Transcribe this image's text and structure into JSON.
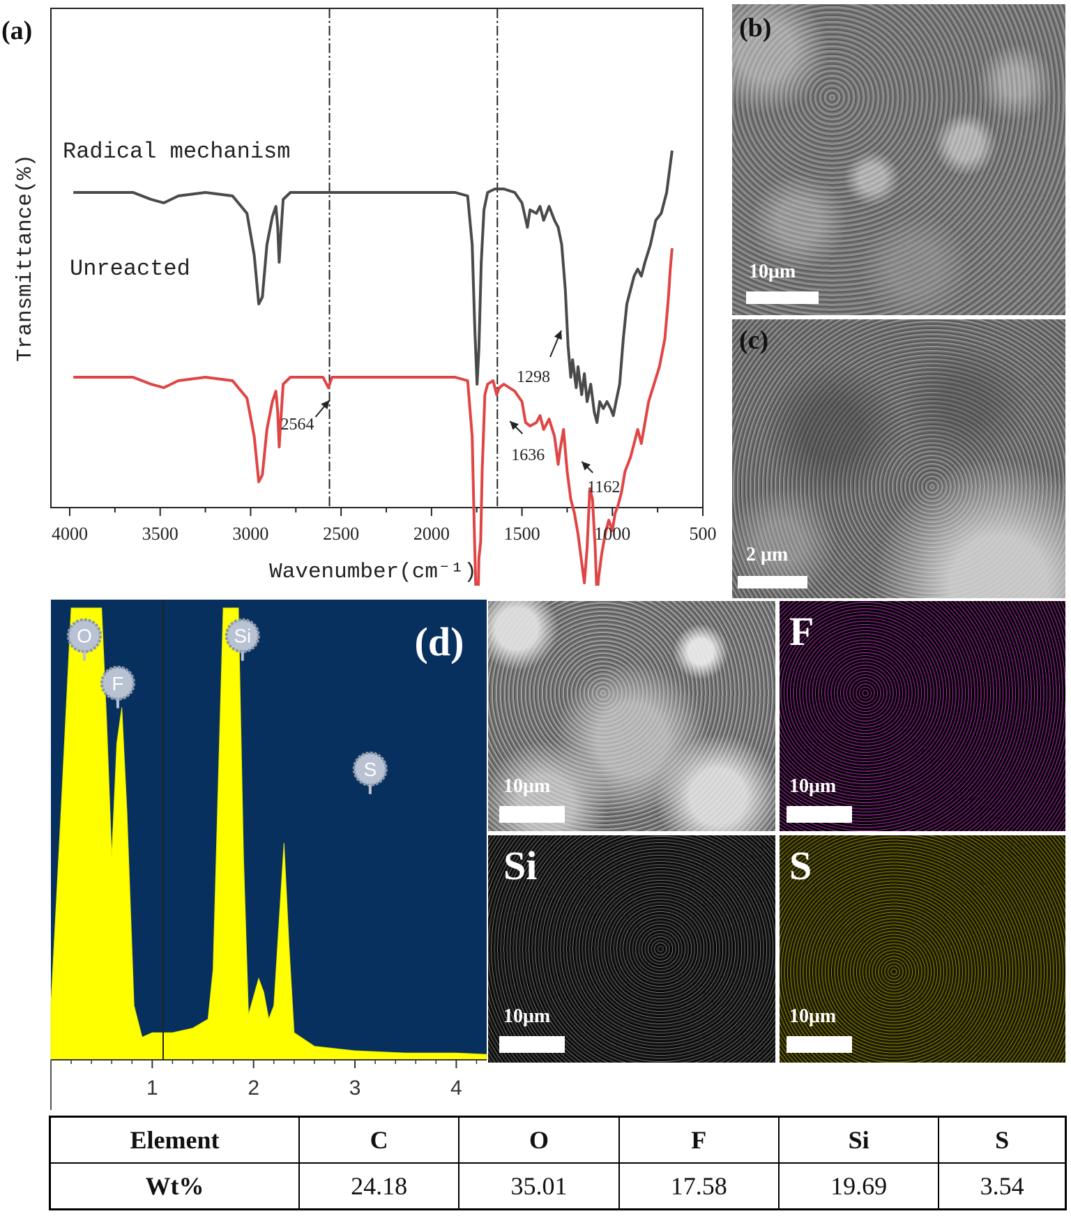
{
  "panels": {
    "a": "(a)",
    "b": "(b)",
    "c": "(c)",
    "d": "(d)"
  },
  "chart_data": [
    {
      "type": "line",
      "panel": "(a)",
      "ylabel": "Transmittance(%)",
      "xlabel": "Wavenumber(cm⁻¹)",
      "xlim": [
        4000,
        500
      ],
      "x_ticks": [
        4000,
        3500,
        3000,
        2500,
        2000,
        1500,
        1000,
        500
      ],
      "grid": false,
      "series": [
        {
          "name": "Radical mechanism",
          "color": "#4a4a4a",
          "points": [
            [
              3980,
              0.4
            ],
            [
              3650,
              0.4
            ],
            [
              3550,
              0.42
            ],
            [
              3480,
              0.43
            ],
            [
              3400,
              0.41
            ],
            [
              3250,
              0.4
            ],
            [
              3100,
              0.41
            ],
            [
              3020,
              0.46
            ],
            [
              2980,
              0.58
            ],
            [
              2955,
              0.72
            ],
            [
              2935,
              0.7
            ],
            [
              2910,
              0.55
            ],
            [
              2880,
              0.47
            ],
            [
              2860,
              0.44
            ],
            [
              2850,
              0.5
            ],
            [
              2842,
              0.6
            ],
            [
              2834,
              0.53
            ],
            [
              2820,
              0.42
            ],
            [
              2780,
              0.4
            ],
            [
              2600,
              0.4
            ],
            [
              2000,
              0.4
            ],
            [
              1870,
              0.4
            ],
            [
              1800,
              0.41
            ],
            [
              1775,
              0.55
            ],
            [
              1760,
              0.8
            ],
            [
              1748,
              0.95
            ],
            [
              1738,
              0.85
            ],
            [
              1725,
              0.6
            ],
            [
              1710,
              0.45
            ],
            [
              1690,
              0.4
            ],
            [
              1650,
              0.39
            ],
            [
              1600,
              0.39
            ],
            [
              1540,
              0.4
            ],
            [
              1500,
              0.43
            ],
            [
              1470,
              0.5
            ],
            [
              1455,
              0.45
            ],
            [
              1420,
              0.46
            ],
            [
              1400,
              0.44
            ],
            [
              1380,
              0.48
            ],
            [
              1350,
              0.44
            ],
            [
              1320,
              0.48
            ],
            [
              1300,
              0.5
            ],
            [
              1280,
              0.55
            ],
            [
              1260,
              0.68
            ],
            [
              1245,
              0.84
            ],
            [
              1230,
              0.93
            ],
            [
              1220,
              0.88
            ],
            [
              1200,
              0.96
            ],
            [
              1190,
              0.9
            ],
            [
              1170,
              0.98
            ],
            [
              1155,
              0.92
            ],
            [
              1140,
              1.0
            ],
            [
              1120,
              0.95
            ],
            [
              1100,
              1.03
            ],
            [
              1085,
              1.06
            ],
            [
              1070,
              1.0
            ],
            [
              1050,
              1.02
            ],
            [
              1030,
              1.0
            ],
            [
              1010,
              1.02
            ],
            [
              995,
              1.04
            ],
            [
              980,
              1.0
            ],
            [
              960,
              0.95
            ],
            [
              940,
              0.82
            ],
            [
              920,
              0.72
            ],
            [
              900,
              0.68
            ],
            [
              880,
              0.64
            ],
            [
              860,
              0.62
            ],
            [
              840,
              0.64
            ],
            [
              820,
              0.6
            ],
            [
              790,
              0.55
            ],
            [
              760,
              0.48
            ],
            [
              730,
              0.46
            ],
            [
              700,
              0.4
            ],
            [
              680,
              0.32
            ],
            [
              670,
              0.28
            ]
          ]
        },
        {
          "name": "Unreacted",
          "color": "#e04545",
          "points": [
            [
              3980,
              0.93
            ],
            [
              3650,
              0.93
            ],
            [
              3550,
              0.95
            ],
            [
              3480,
              0.96
            ],
            [
              3400,
              0.94
            ],
            [
              3250,
              0.93
            ],
            [
              3100,
              0.94
            ],
            [
              3020,
              0.99
            ],
            [
              2980,
              1.1
            ],
            [
              2955,
              1.23
            ],
            [
              2935,
              1.21
            ],
            [
              2910,
              1.08
            ],
            [
              2880,
              1.0
            ],
            [
              2860,
              0.97
            ],
            [
              2850,
              1.03
            ],
            [
              2842,
              1.13
            ],
            [
              2834,
              1.06
            ],
            [
              2820,
              0.95
            ],
            [
              2780,
              0.93
            ],
            [
              2600,
              0.93
            ],
            [
              2570,
              0.96
            ],
            [
              2550,
              0.93
            ],
            [
              2000,
              0.93
            ],
            [
              1870,
              0.93
            ],
            [
              1800,
              0.94
            ],
            [
              1775,
              1.1
            ],
            [
              1762,
              1.4
            ],
            [
              1752,
              1.6
            ],
            [
              1745,
              1.65
            ],
            [
              1738,
              1.45
            ],
            [
              1728,
              1.4
            ],
            [
              1720,
              1.2
            ],
            [
              1705,
              0.98
            ],
            [
              1690,
              0.95
            ],
            [
              1660,
              0.94
            ],
            [
              1640,
              0.98
            ],
            [
              1625,
              0.96
            ],
            [
              1600,
              0.95
            ],
            [
              1540,
              0.97
            ],
            [
              1500,
              1.0
            ],
            [
              1480,
              1.06
            ],
            [
              1455,
              1.07
            ],
            [
              1420,
              1.06
            ],
            [
              1400,
              1.04
            ],
            [
              1380,
              1.08
            ],
            [
              1350,
              1.05
            ],
            [
              1320,
              1.1
            ],
            [
              1300,
              1.18
            ],
            [
              1290,
              1.14
            ],
            [
              1270,
              1.08
            ],
            [
              1250,
              1.2
            ],
            [
              1230,
              1.28
            ],
            [
              1210,
              1.32
            ],
            [
              1190,
              1.38
            ],
            [
              1170,
              1.46
            ],
            [
              1155,
              1.52
            ],
            [
              1140,
              1.42
            ],
            [
              1125,
              1.25
            ],
            [
              1110,
              1.28
            ],
            [
              1095,
              1.42
            ],
            [
              1085,
              1.56
            ],
            [
              1075,
              1.5
            ],
            [
              1060,
              1.44
            ],
            [
              1040,
              1.38
            ],
            [
              1020,
              1.34
            ],
            [
              1000,
              1.37
            ],
            [
              985,
              1.32
            ],
            [
              970,
              1.3
            ],
            [
              950,
              1.26
            ],
            [
              930,
              1.2
            ],
            [
              900,
              1.16
            ],
            [
              880,
              1.12
            ],
            [
              860,
              1.08
            ],
            [
              840,
              1.12
            ],
            [
              820,
              1.06
            ],
            [
              800,
              1.0
            ],
            [
              770,
              0.95
            ],
            [
              740,
              0.9
            ],
            [
              710,
              0.82
            ],
            [
              690,
              0.7
            ],
            [
              680,
              0.62
            ],
            [
              670,
              0.56
            ]
          ]
        }
      ],
      "vlines": [
        2564,
        1636
      ],
      "annotations": [
        {
          "label": "2564",
          "x": 2564
        },
        {
          "label": "1636",
          "x": 1636
        },
        {
          "label": "1298",
          "x": 1298
        },
        {
          "label": "1162",
          "x": 1162
        }
      ]
    },
    {
      "type": "area",
      "panel": "(d)",
      "xlim": [
        0,
        4.3
      ],
      "x_ticks": [
        1,
        2,
        3,
        4
      ],
      "background": "#08305f",
      "fill": "#ffff00",
      "peak_labels": [
        "O",
        "F",
        "Si",
        "S"
      ],
      "points": [
        [
          0.0,
          0.12
        ],
        [
          0.1,
          0.55
        ],
        [
          0.2,
          1.0
        ],
        [
          0.4,
          1.0
        ],
        [
          0.5,
          1.0
        ],
        [
          0.55,
          0.75
        ],
        [
          0.6,
          0.45
        ],
        [
          0.65,
          0.7
        ],
        [
          0.7,
          0.78
        ],
        [
          0.75,
          0.55
        ],
        [
          0.82,
          0.12
        ],
        [
          0.9,
          0.05
        ],
        [
          1.0,
          0.06
        ],
        [
          1.2,
          0.06
        ],
        [
          1.4,
          0.07
        ],
        [
          1.55,
          0.09
        ],
        [
          1.6,
          0.2
        ],
        [
          1.65,
          0.6
        ],
        [
          1.7,
          1.0
        ],
        [
          1.85,
          1.0
        ],
        [
          1.9,
          0.45
        ],
        [
          1.95,
          0.1
        ],
        [
          2.0,
          0.14
        ],
        [
          2.05,
          0.18
        ],
        [
          2.1,
          0.15
        ],
        [
          2.15,
          0.09
        ],
        [
          2.2,
          0.12
        ],
        [
          2.25,
          0.3
        ],
        [
          2.3,
          0.48
        ],
        [
          2.35,
          0.25
        ],
        [
          2.4,
          0.06
        ],
        [
          2.6,
          0.03
        ],
        [
          3.0,
          0.02
        ],
        [
          3.5,
          0.015
        ],
        [
          4.0,
          0.015
        ],
        [
          4.3,
          0.012
        ]
      ]
    }
  ],
  "sem_images": {
    "b_scale": "10μm",
    "c_scale": "2 μm",
    "d_sem_scale": "10μm",
    "map_f_label": "F",
    "map_f_scale": "10μm",
    "map_si_label": "Si",
    "map_si_scale": "10μm",
    "map_s_label": "S",
    "map_s_scale": "10μm"
  },
  "table": {
    "header": [
      "Element",
      "C",
      "O",
      "F",
      "Si",
      "S"
    ],
    "row": [
      "Wt%",
      "24.18",
      "35.01",
      "17.58",
      "19.69",
      "3.54"
    ]
  }
}
